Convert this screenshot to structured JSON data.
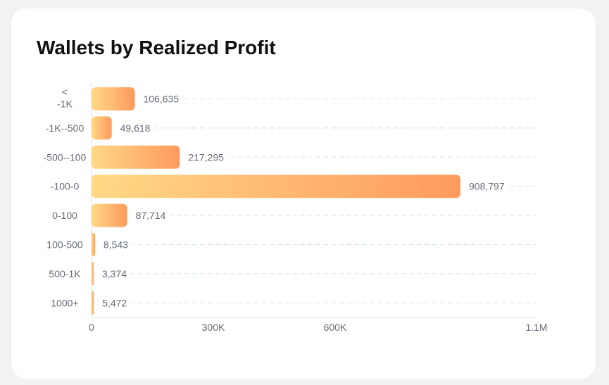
{
  "title": "Wallets by Realized Profit",
  "colors": {
    "bar_start": "#ffd985",
    "bar_end": "#ff9a5e",
    "grid": "#cfe4f2",
    "axis": "#cfe4f2",
    "label": "#666b78"
  },
  "chart_data": {
    "type": "bar",
    "orientation": "horizontal",
    "title": "Wallets by Realized Profit",
    "categories": [
      "<\n-1K",
      "-1K--500",
      "-500--100",
      "-100-0",
      "0-100",
      "100-500",
      "500-1K",
      "1000+"
    ],
    "values": [
      106635,
      49618,
      217295,
      908797,
      87714,
      8543,
      3374,
      5472
    ],
    "value_labels": [
      "106,635",
      "49,618",
      "217,295",
      "908,797",
      "87,714",
      "8,543",
      "3,374",
      "5,472"
    ],
    "x_ticks": [
      0,
      300000,
      600000,
      1100000
    ],
    "x_tick_labels": [
      "0",
      "300K",
      "600K",
      "1.1M"
    ],
    "xlim": [
      0,
      1100000
    ],
    "grid": true,
    "legend": "none"
  }
}
